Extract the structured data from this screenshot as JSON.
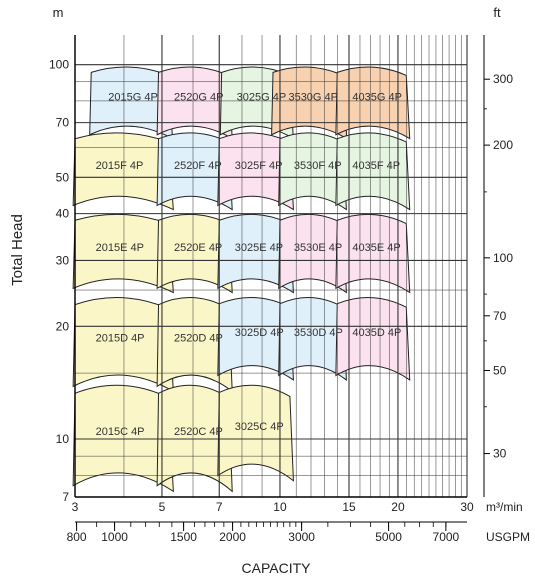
{
  "chart_data": {
    "type": "area",
    "title": "",
    "ylabel": "Total Head",
    "xlabel": "CAPACITY",
    "left_unit": "m",
    "right_unit": "ft",
    "x_unit_top": "m³/min",
    "x_unit_bottom": "USGPM",
    "x_scale": "log",
    "y_scale": "log",
    "xlim": [
      3,
      30
    ],
    "ylim": [
      7,
      120
    ],
    "x_ticks_m3min": [
      {
        "value": 3,
        "label": "3"
      },
      {
        "value": 5,
        "label": "5"
      },
      {
        "value": 7,
        "label": "7"
      },
      {
        "value": 10,
        "label": "10"
      },
      {
        "value": 15,
        "label": "15"
      },
      {
        "value": 20,
        "label": "20"
      },
      {
        "value": 30,
        "label": "30"
      }
    ],
    "x_ticks_usgpm": [
      {
        "value": 800,
        "label": "800"
      },
      {
        "value": 1000,
        "label": "1000"
      },
      {
        "value": 1500,
        "label": "1500"
      },
      {
        "value": 2000,
        "label": "2000"
      },
      {
        "value": 3000,
        "label": "3000"
      },
      {
        "value": 5000,
        "label": "5000"
      },
      {
        "value": 7000,
        "label": "7000"
      }
    ],
    "y_ticks_m": [
      {
        "value": 7,
        "label": "7"
      },
      {
        "value": 10,
        "label": "10"
      },
      {
        "value": 20,
        "label": "20"
      },
      {
        "value": 30,
        "label": "30"
      },
      {
        "value": 40,
        "label": "40"
      },
      {
        "value": 50,
        "label": "50"
      },
      {
        "value": 70,
        "label": "70"
      },
      {
        "value": 100,
        "label": "100"
      }
    ],
    "y_ticks_ft": [
      {
        "value": 30,
        "label": "30"
      },
      {
        "value": 50,
        "label": "50"
      },
      {
        "value": 70,
        "label": "70"
      },
      {
        "value": 100,
        "label": "100"
      },
      {
        "value": 200,
        "label": "200"
      },
      {
        "value": 300,
        "label": "300"
      }
    ],
    "colors": {
      "2015": "#fbf6c8",
      "2520": "#fbf6c8",
      "3025": "#e3f0fb",
      "3530": "#fbe6ee",
      "4035": "#e8f4e6",
      "highlight": "#f8d2b0"
    },
    "zones": [
      {
        "label": "2015G 4P",
        "q_min": 3.3,
        "q_max": 5.2,
        "h_min": 62,
        "h_max": 99,
        "color": "#dff0fb"
      },
      {
        "label": "2520G 4P",
        "q_min": 4.9,
        "q_max": 7.4,
        "h_min": 62,
        "h_max": 99,
        "color": "#fbe2ee"
      },
      {
        "label": "3025G 4P",
        "q_min": 7.1,
        "q_max": 10.6,
        "h_min": 62,
        "h_max": 99,
        "color": "#e6f4e2"
      },
      {
        "label": "3530G 4P",
        "q_min": 9.6,
        "q_max": 14.5,
        "h_min": 62,
        "h_max": 99,
        "color": "#f8d2b0"
      },
      {
        "label": "4035G 4P",
        "q_min": 14.0,
        "q_max": 21.0,
        "h_min": 62,
        "h_max": 99,
        "color": "#f8d2b0"
      },
      {
        "label": "2015F 4P",
        "q_min": 3.0,
        "q_max": 5.2,
        "h_min": 40,
        "h_max": 66,
        "color": "#fbf6c8"
      },
      {
        "label": "2520F 4P",
        "q_min": 4.9,
        "q_max": 7.4,
        "h_min": 40,
        "h_max": 66,
        "color": "#dff0fb"
      },
      {
        "label": "3025F 4P",
        "q_min": 7.0,
        "q_max": 10.6,
        "h_min": 40,
        "h_max": 66,
        "color": "#fbe2ee"
      },
      {
        "label": "3530F 4P",
        "q_min": 10.0,
        "q_max": 14.5,
        "h_min": 40,
        "h_max": 66,
        "color": "#e6f4e2"
      },
      {
        "label": "4035F 4P",
        "q_min": 14.0,
        "q_max": 21.0,
        "h_min": 40,
        "h_max": 66,
        "color": "#e6f4e2"
      },
      {
        "label": "2015E 4P",
        "q_min": 3.0,
        "q_max": 5.2,
        "h_min": 24,
        "h_max": 40,
        "color": "#fbf6c8"
      },
      {
        "label": "2520E 4P",
        "q_min": 4.9,
        "q_max": 7.4,
        "h_min": 24,
        "h_max": 40,
        "color": "#fbf6c8"
      },
      {
        "label": "3025E 4P",
        "q_min": 7.0,
        "q_max": 10.6,
        "h_min": 24,
        "h_max": 40,
        "color": "#dff0fb"
      },
      {
        "label": "3530E 4P",
        "q_min": 10.0,
        "q_max": 14.5,
        "h_min": 24,
        "h_max": 40,
        "color": "#fbe2ee"
      },
      {
        "label": "4035E 4P",
        "q_min": 14.0,
        "q_max": 21.0,
        "h_min": 24,
        "h_max": 40,
        "color": "#fbe2ee"
      },
      {
        "label": "2015D 4P",
        "q_min": 3.0,
        "q_max": 5.2,
        "h_min": 13,
        "h_max": 24,
        "color": "#fbf6c8"
      },
      {
        "label": "2520D 4P",
        "q_min": 4.9,
        "q_max": 7.4,
        "h_min": 13,
        "h_max": 24,
        "color": "#fbf6c8"
      },
      {
        "label": "3025D 4P",
        "q_min": 7.0,
        "q_max": 10.6,
        "h_min": 14,
        "h_max": 24,
        "color": "#dff0fb"
      },
      {
        "label": "3530D 4P",
        "q_min": 10.0,
        "q_max": 14.5,
        "h_min": 14,
        "h_max": 24,
        "color": "#dff0fb"
      },
      {
        "label": "4035D 4P",
        "q_min": 14.0,
        "q_max": 21.0,
        "h_min": 14,
        "h_max": 24,
        "color": "#fbe2ee"
      },
      {
        "label": "2015C 4P",
        "q_min": 3.0,
        "q_max": 5.2,
        "h_min": 7,
        "h_max": 14,
        "color": "#fbf6c8"
      },
      {
        "label": "2520C 4P",
        "q_min": 4.9,
        "q_max": 7.4,
        "h_min": 7,
        "h_max": 14,
        "color": "#fbf6c8"
      },
      {
        "label": "3025C 4P",
        "q_min": 7.0,
        "q_max": 10.6,
        "h_min": 7.5,
        "h_max": 14,
        "color": "#fbf6c8"
      }
    ]
  }
}
